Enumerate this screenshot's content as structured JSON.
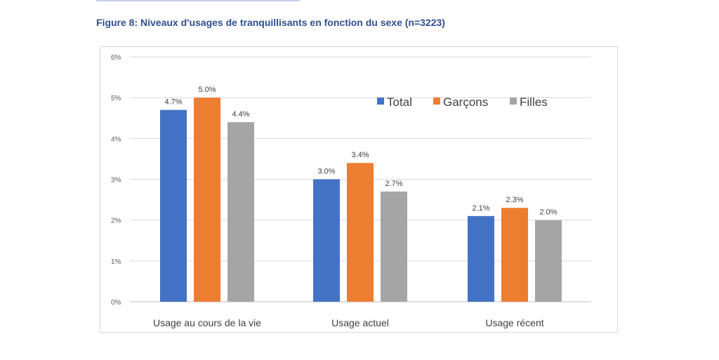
{
  "figure": {
    "title": "Figure 8: Niveaux d'usages de tranquillisants en fonction du sexe (n=3223)"
  },
  "chart_data": {
    "type": "bar",
    "title": "Figure 8: Niveaux d'usages de tranquillisants en fonction du sexe (n=3223)",
    "xlabel": "",
    "ylabel": "",
    "categories": [
      "Usage au cours de la vie",
      "Usage actuel",
      "Usage récent"
    ],
    "series": [
      {
        "name": "Total",
        "color": "#4472c4",
        "values": [
          4.7,
          3.0,
          2.1
        ],
        "labels": [
          "4.7%",
          "3.0%",
          "2.1%"
        ]
      },
      {
        "name": "Garçons",
        "color": "#ed7d31",
        "values": [
          5.0,
          3.4,
          2.3
        ],
        "labels": [
          "5.0%",
          "3.4%",
          "2.3%"
        ]
      },
      {
        "name": "Filles",
        "color": "#a5a5a5",
        "values": [
          4.4,
          2.7,
          2.0
        ],
        "labels": [
          "4.4%",
          "2.7%",
          "2.0%"
        ]
      }
    ],
    "ylim": [
      0,
      6
    ],
    "yticks": [
      0,
      1,
      2,
      3,
      4,
      5,
      6
    ],
    "ytick_labels": [
      "0%",
      "1%",
      "2%",
      "3%",
      "4%",
      "5%",
      "6%"
    ],
    "grid": true,
    "legend_position": "top-right"
  }
}
